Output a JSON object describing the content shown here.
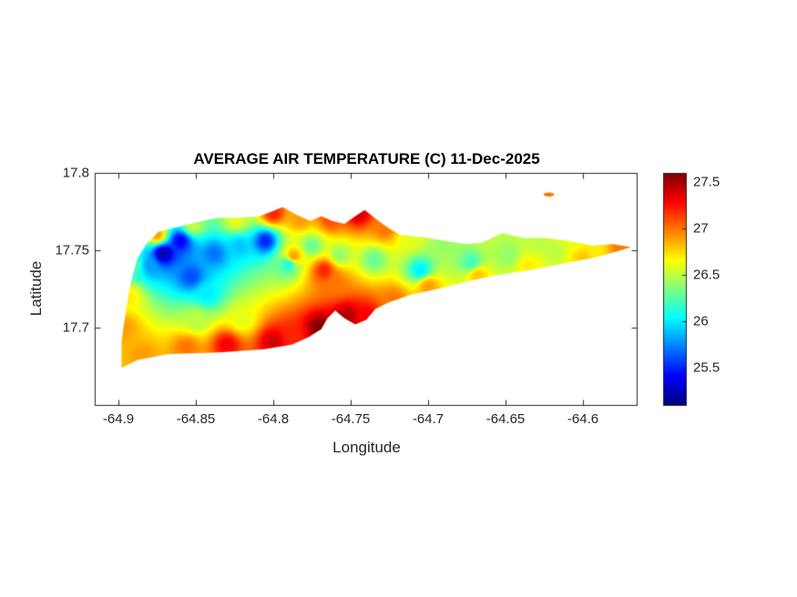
{
  "figure": {
    "title": "AVERAGE AIR TEMPERATURE (C) 11-Dec-2025",
    "background": "#ffffff"
  },
  "axes": {
    "xlabel": "Longitude",
    "ylabel": "Latitude",
    "axis_color": "#262626",
    "x": {
      "min": -64.915,
      "max": -64.565,
      "ticks": [
        -64.9,
        -64.85,
        -64.8,
        -64.75,
        -64.7,
        -64.65,
        -64.6
      ],
      "tick_labels": [
        "-64.9",
        "-64.85",
        "-64.8",
        "-64.75",
        "-64.7",
        "-64.65",
        "-64.6"
      ]
    },
    "y": {
      "min": 17.65,
      "max": 17.8,
      "ticks": [
        17.8,
        17.75,
        17.7
      ],
      "tick_labels": [
        "17.8",
        "17.75",
        "17.7"
      ]
    }
  },
  "colorbar": {
    "min": 25.1,
    "max": 27.6,
    "ticks": [
      27.5,
      27,
      26.5,
      26,
      25.5
    ],
    "tick_labels": [
      "27.5",
      "27",
      "26.5",
      "26",
      "25.5"
    ],
    "colormap": "jet"
  },
  "chart_data": {
    "type": "heatmap",
    "title": "AVERAGE AIR TEMPERATURE (C) 11-Dec-2025",
    "xlabel": "Longitude",
    "ylabel": "Latitude",
    "xlim": [
      -64.915,
      -64.565
    ],
    "ylim": [
      17.65,
      17.8
    ],
    "value_name": "Average air temperature (C)",
    "value_range": [
      25.1,
      27.6
    ],
    "colormap": "jet",
    "grid": false,
    "legend_position": "colorbar-right",
    "island_outline_lonlat": [
      [
        -64.898,
        17.674
      ],
      [
        -64.888,
        17.679
      ],
      [
        -64.868,
        17.683
      ],
      [
        -64.835,
        17.684
      ],
      [
        -64.806,
        17.686
      ],
      [
        -64.788,
        17.689
      ],
      [
        -64.777,
        17.694
      ],
      [
        -64.769,
        17.699
      ],
      [
        -64.765,
        17.706
      ],
      [
        -64.76,
        17.711
      ],
      [
        -64.754,
        17.706
      ],
      [
        -64.747,
        17.702
      ],
      [
        -64.74,
        17.705
      ],
      [
        -64.734,
        17.712
      ],
      [
        -64.726,
        17.716
      ],
      [
        -64.712,
        17.721
      ],
      [
        -64.694,
        17.725
      ],
      [
        -64.674,
        17.73
      ],
      [
        -64.656,
        17.734
      ],
      [
        -64.635,
        17.737
      ],
      [
        -64.615,
        17.741
      ],
      [
        -64.594,
        17.745
      ],
      [
        -64.579,
        17.749
      ],
      [
        -64.569,
        17.752
      ],
      [
        -64.581,
        17.754
      ],
      [
        -64.594,
        17.753
      ],
      [
        -64.609,
        17.756
      ],
      [
        -64.624,
        17.758
      ],
      [
        -64.638,
        17.758
      ],
      [
        -64.652,
        17.761
      ],
      [
        -64.665,
        17.755
      ],
      [
        -64.676,
        17.754
      ],
      [
        -64.689,
        17.756
      ],
      [
        -64.7,
        17.758
      ],
      [
        -64.709,
        17.759
      ],
      [
        -64.718,
        17.76
      ],
      [
        -64.725,
        17.764
      ],
      [
        -64.732,
        17.769
      ],
      [
        -64.741,
        17.776
      ],
      [
        -64.747,
        17.772
      ],
      [
        -64.754,
        17.767
      ],
      [
        -64.762,
        17.769
      ],
      [
        -64.769,
        17.772
      ],
      [
        -64.776,
        17.769
      ],
      [
        -64.785,
        17.773
      ],
      [
        -64.794,
        17.778
      ],
      [
        -64.801,
        17.775
      ],
      [
        -64.809,
        17.772
      ],
      [
        -64.822,
        17.771
      ],
      [
        -64.836,
        17.771
      ],
      [
        -64.85,
        17.768
      ],
      [
        -64.862,
        17.765
      ],
      [
        -64.874,
        17.762
      ],
      [
        -64.882,
        17.754
      ],
      [
        -64.888,
        17.744
      ],
      [
        -64.892,
        17.729
      ],
      [
        -64.895,
        17.712
      ],
      [
        -64.898,
        17.691
      ]
    ],
    "islet": {
      "lon": -64.622,
      "lat": 17.786,
      "rlon": 0.0035,
      "rlat": 0.0013,
      "temp": 27.0
    },
    "sample_points_lon_lat_temp": [
      [
        -64.871,
        17.748,
        25.2
      ],
      [
        -64.86,
        17.756,
        25.4
      ],
      [
        -64.853,
        17.733,
        25.6
      ],
      [
        -64.838,
        17.748,
        25.7
      ],
      [
        -64.843,
        17.722,
        26.0
      ],
      [
        -64.805,
        17.756,
        25.5
      ],
      [
        -64.822,
        17.753,
        25.9
      ],
      [
        -64.88,
        17.74,
        25.8
      ],
      [
        -64.79,
        17.741,
        26.1
      ],
      [
        -64.775,
        17.753,
        26.3
      ],
      [
        -64.757,
        17.747,
        26.4
      ],
      [
        -64.735,
        17.744,
        26.3
      ],
      [
        -64.705,
        17.737,
        26.0
      ],
      [
        -64.672,
        17.742,
        26.2
      ],
      [
        -64.648,
        17.747,
        26.4
      ],
      [
        -64.618,
        17.749,
        26.5
      ],
      [
        -64.592,
        17.749,
        26.7
      ],
      [
        -64.787,
        17.746,
        26.9
      ],
      [
        -64.767,
        17.737,
        27.2
      ],
      [
        -64.76,
        17.729,
        27.0
      ],
      [
        -64.884,
        17.682,
        26.9
      ],
      [
        -64.856,
        17.687,
        27.0
      ],
      [
        -64.83,
        17.689,
        27.3
      ],
      [
        -64.8,
        17.691,
        27.4
      ],
      [
        -64.788,
        17.695,
        27.2
      ],
      [
        -64.77,
        17.7,
        27.6
      ],
      [
        -64.753,
        17.707,
        27.5
      ],
      [
        -64.74,
        17.708,
        27.3
      ],
      [
        -64.722,
        17.718,
        27.0
      ],
      [
        -64.7,
        17.727,
        26.9
      ],
      [
        -64.668,
        17.734,
        26.8
      ],
      [
        -64.635,
        17.74,
        26.7
      ],
      [
        -64.6,
        17.745,
        26.8
      ],
      [
        -64.575,
        17.751,
        27.0
      ],
      [
        -64.875,
        17.76,
        26.9
      ],
      [
        -64.852,
        17.766,
        26.5
      ],
      [
        -64.824,
        17.769,
        26.6
      ],
      [
        -64.8,
        17.774,
        27.2
      ],
      [
        -64.783,
        17.77,
        26.9
      ],
      [
        -64.763,
        17.77,
        27.1
      ],
      [
        -64.745,
        17.774,
        27.4
      ],
      [
        -64.728,
        17.764,
        27.0
      ],
      [
        -64.712,
        17.758,
        26.6
      ],
      [
        -64.69,
        17.756,
        26.4
      ],
      [
        -64.662,
        17.758,
        26.5
      ],
      [
        -64.63,
        17.756,
        26.5
      ],
      [
        -64.606,
        17.757,
        26.6
      ],
      [
        -64.896,
        17.7,
        26.9
      ],
      [
        -64.893,
        17.72,
        26.7
      ],
      [
        -64.889,
        17.74,
        26.2
      ],
      [
        -64.85,
        17.705,
        26.5
      ],
      [
        -64.82,
        17.705,
        26.6
      ]
    ]
  }
}
